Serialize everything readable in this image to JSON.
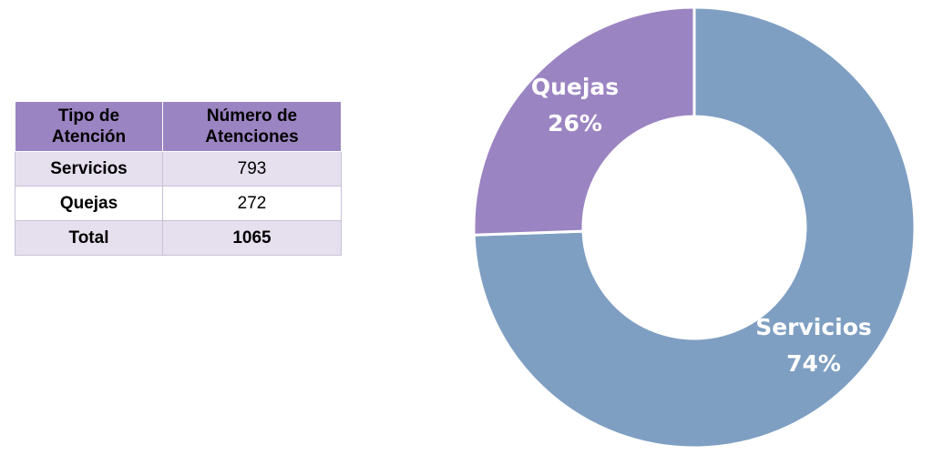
{
  "table": {
    "headers": [
      {
        "line1": "Tipo de",
        "line2": "Atención"
      },
      {
        "line1": "Número de",
        "line2": "Atenciones"
      }
    ],
    "rows": [
      {
        "category": "Servicios",
        "value": "793"
      },
      {
        "category": "Quejas",
        "value": "272"
      },
      {
        "category": "Total",
        "value": "1065"
      }
    ]
  },
  "chart_data": {
    "type": "pie",
    "variant": "donut",
    "title": "",
    "slices": [
      {
        "label": "Servicios",
        "value": 793,
        "percent_label": "74%",
        "color": "#7f9fc2"
      },
      {
        "label": "Quejas",
        "value": 272,
        "percent_label": "26%",
        "color": "#9b84c2"
      }
    ],
    "start": "top, clockwise",
    "legend": "none"
  }
}
